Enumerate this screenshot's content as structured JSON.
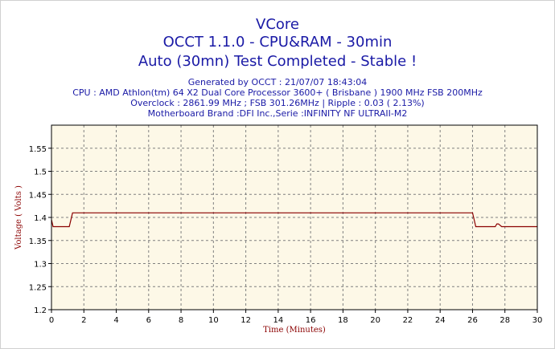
{
  "header": {
    "title": "VCore",
    "subtitle": "OCCT 1.1.0 - CPU&RAM - 30min",
    "status": "Auto (30mn) Test Completed - Stable !"
  },
  "info": {
    "generated": "Generated by OCCT : 21/07/07 18:43:04",
    "cpu": "CPU : AMD Athlon(tm) 64 X2 Dual Core Processor 3600+ ( Brisbane ) 1900 MHz FSB 200MHz",
    "overclock": "Overclock : 2861.99 MHz ; FSB 301.26MHz | Ripple : 0.03 ( 2.13%)",
    "motherboard": "Motherboard Brand :DFI Inc.,Serie :INFINITY NF ULTRAII-M2"
  },
  "colors": {
    "plot_background": "#fdf8e7",
    "line": "#8b0000",
    "grid": "#808080",
    "text": "#1a1aa6"
  },
  "chart_data": {
    "type": "line",
    "xlabel": "Time (Minutes)",
    "ylabel": "Voltage ( Volts )",
    "xlim": [
      0,
      30
    ],
    "ylim": [
      1.2,
      1.6
    ],
    "x_ticks": [
      0,
      2,
      4,
      6,
      8,
      10,
      12,
      14,
      16,
      18,
      20,
      22,
      24,
      26,
      28,
      30
    ],
    "y_ticks": [
      1.2,
      1.25,
      1.3,
      1.35,
      1.4,
      1.45,
      1.5,
      1.55
    ],
    "grid": true,
    "legend": "none",
    "series": [
      {
        "x": [
          0,
          0.1,
          0.25,
          1.1,
          1.3,
          26.0,
          26.2,
          27.4,
          27.5,
          27.6,
          27.8,
          30
        ],
        "y": [
          1.395,
          1.38,
          1.38,
          1.38,
          1.41,
          1.41,
          1.38,
          1.38,
          1.386,
          1.386,
          1.38,
          1.38
        ]
      }
    ]
  }
}
